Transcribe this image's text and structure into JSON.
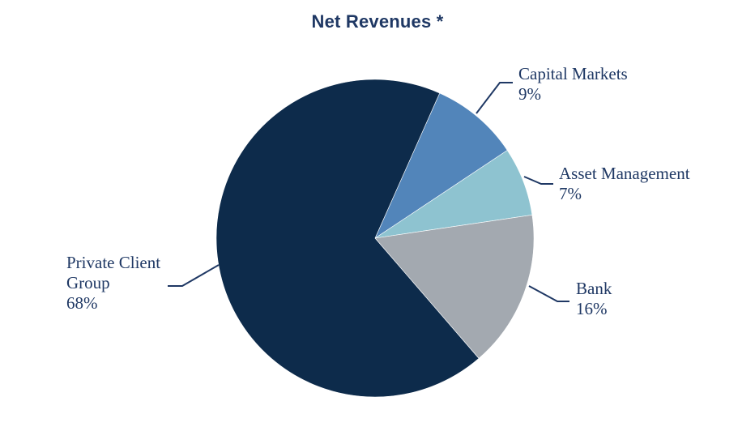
{
  "chart_data": {
    "type": "pie",
    "title": "Net Revenues *",
    "legend_position": "none",
    "labels_style": "outside-with-leader-lines",
    "start_angle_deg_clockwise_from_top": 24,
    "direction": "clockwise",
    "background_color": "#ffffff",
    "title_color": "#1F3864",
    "label_text_color": "#1F3864",
    "leader_line_color": "#1F3864",
    "slices": [
      {
        "label": "Capital Markets",
        "value": 9,
        "pct_label": "9%",
        "color": "#5285BA"
      },
      {
        "label": "Asset Management",
        "value": 7,
        "pct_label": "7%",
        "color": "#8EC3D0"
      },
      {
        "label": "Bank",
        "value": 16,
        "pct_label": "16%",
        "color": "#A3A9B0"
      },
      {
        "label": "Private Client Group",
        "value": 68,
        "pct_label": "68%",
        "color": "#0D2B4B"
      }
    ]
  }
}
